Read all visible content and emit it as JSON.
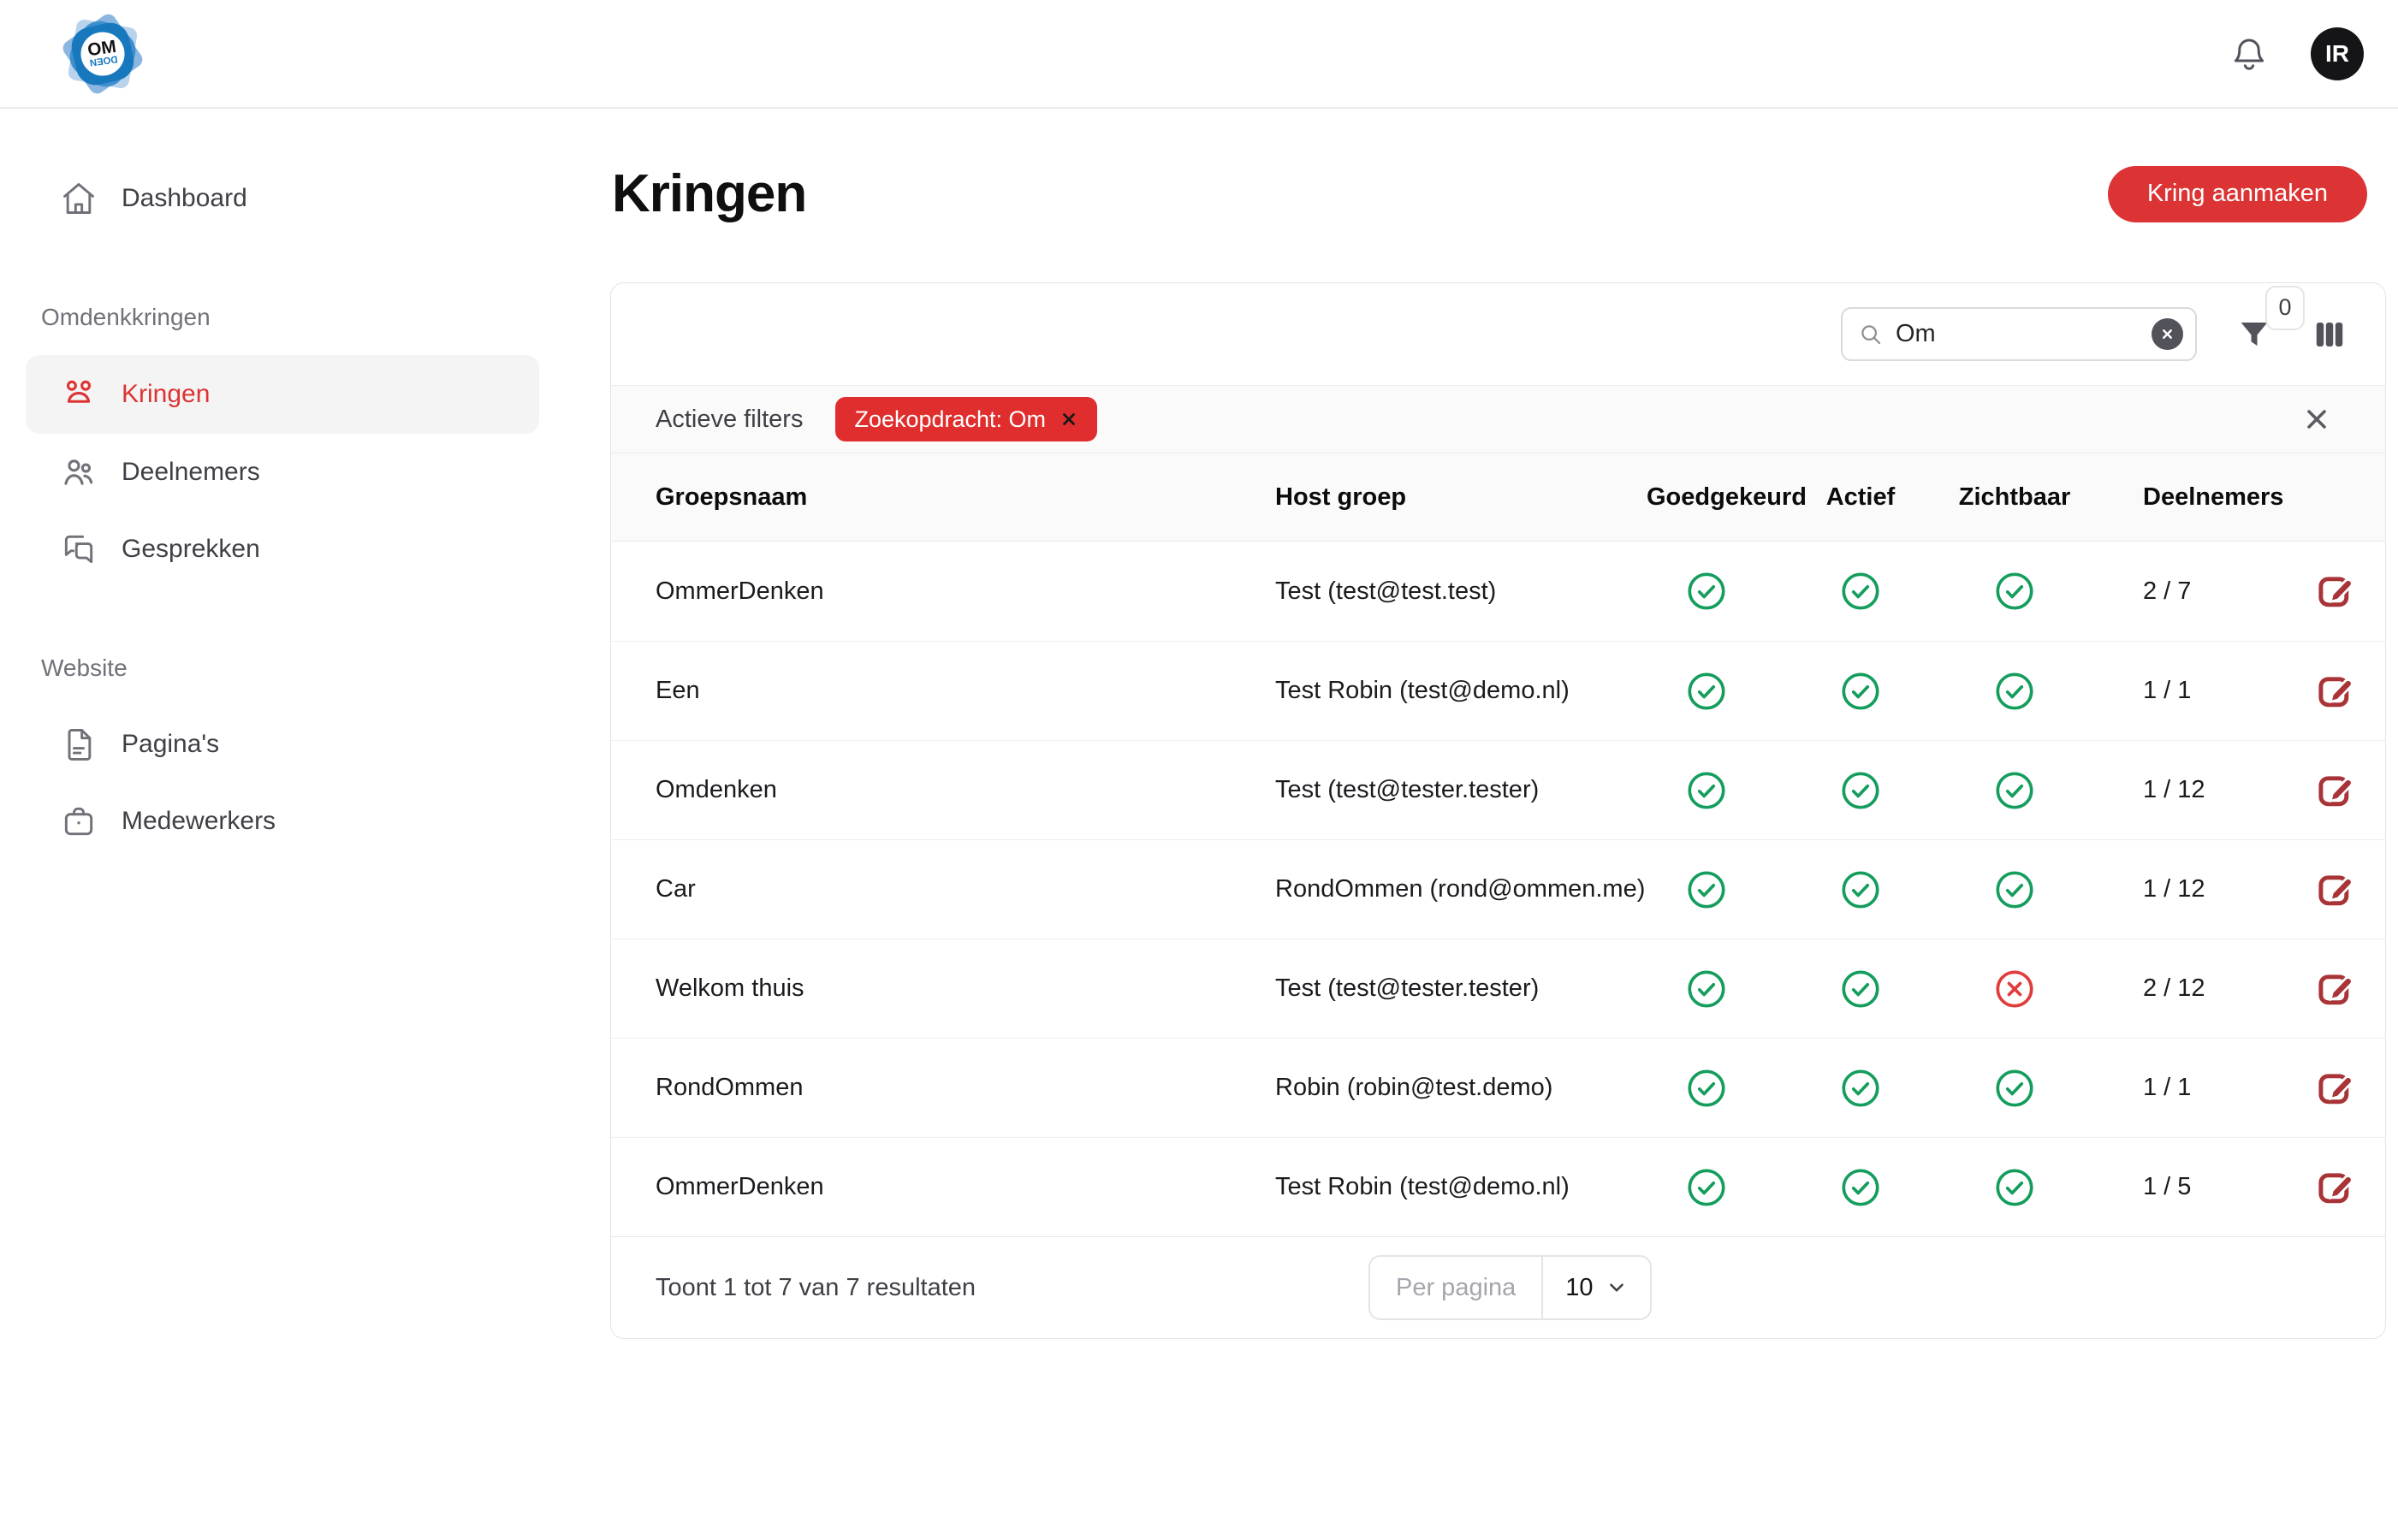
{
  "colors": {
    "primary_red": "#DC3434",
    "chip_red": "#E02D2D",
    "edit_red": "#A93438",
    "status_green": "#149D5D",
    "status_red": "#E23B3B"
  },
  "topbar": {
    "logo_text_top": "OM",
    "logo_text_bottom": "DOEN",
    "avatar_initials": "IR"
  },
  "sidebar": {
    "sections": [
      {
        "heading": "",
        "items": [
          {
            "label": "Dashboard",
            "icon": "home-icon",
            "active": false
          }
        ]
      },
      {
        "heading": "Omdenkkringen",
        "items": [
          {
            "label": "Kringen",
            "icon": "group-icon",
            "active": true
          },
          {
            "label": "Deelnemers",
            "icon": "users-icon",
            "active": false
          },
          {
            "label": "Gesprekken",
            "icon": "chat-icon",
            "active": false
          }
        ]
      },
      {
        "heading": "Website",
        "items": [
          {
            "label": "Pagina's",
            "icon": "page-icon",
            "active": false
          },
          {
            "label": "Medewerkers",
            "icon": "briefcase-icon",
            "active": false
          }
        ]
      }
    ]
  },
  "page": {
    "title": "Kringen",
    "create_button_label": "Kring aanmaken"
  },
  "toolbar": {
    "search_value": "Om",
    "filter_badge_count": "0"
  },
  "filters": {
    "label": "Actieve filters",
    "chips": [
      "Zoekopdracht: Om"
    ]
  },
  "table": {
    "columns": [
      "Groepsnaam",
      "Host groep",
      "Goedgekeurd",
      "Actief",
      "Zichtbaar",
      "Deelnemers"
    ],
    "rows": [
      {
        "name": "OmmerDenken",
        "host": "Test (test@test.test)",
        "approved": true,
        "active": true,
        "visible": true,
        "participants": "2 / 7"
      },
      {
        "name": "Een",
        "host": "Test Robin (test@demo.nl)",
        "approved": true,
        "active": true,
        "visible": true,
        "participants": "1 / 1"
      },
      {
        "name": "Omdenken",
        "host": "Test (test@tester.tester)",
        "approved": true,
        "active": true,
        "visible": true,
        "participants": "1 / 12"
      },
      {
        "name": "Car",
        "host": "RondOmmen (rond@ommen.me)",
        "approved": true,
        "active": true,
        "visible": true,
        "participants": "1 / 12"
      },
      {
        "name": "Welkom thuis",
        "host": "Test (test@tester.tester)",
        "approved": true,
        "active": true,
        "visible": false,
        "participants": "2 / 12"
      },
      {
        "name": "RondOmmen",
        "host": "Robin (robin@test.demo)",
        "approved": true,
        "active": true,
        "visible": true,
        "participants": "1 / 1"
      },
      {
        "name": "OmmerDenken",
        "host": "Test Robin (test@demo.nl)",
        "approved": true,
        "active": true,
        "visible": true,
        "participants": "1 / 5"
      }
    ]
  },
  "pagination": {
    "summary": "Toont 1 tot 7 van 7 resultaten",
    "per_page_label": "Per pagina",
    "per_page_value": "10"
  }
}
